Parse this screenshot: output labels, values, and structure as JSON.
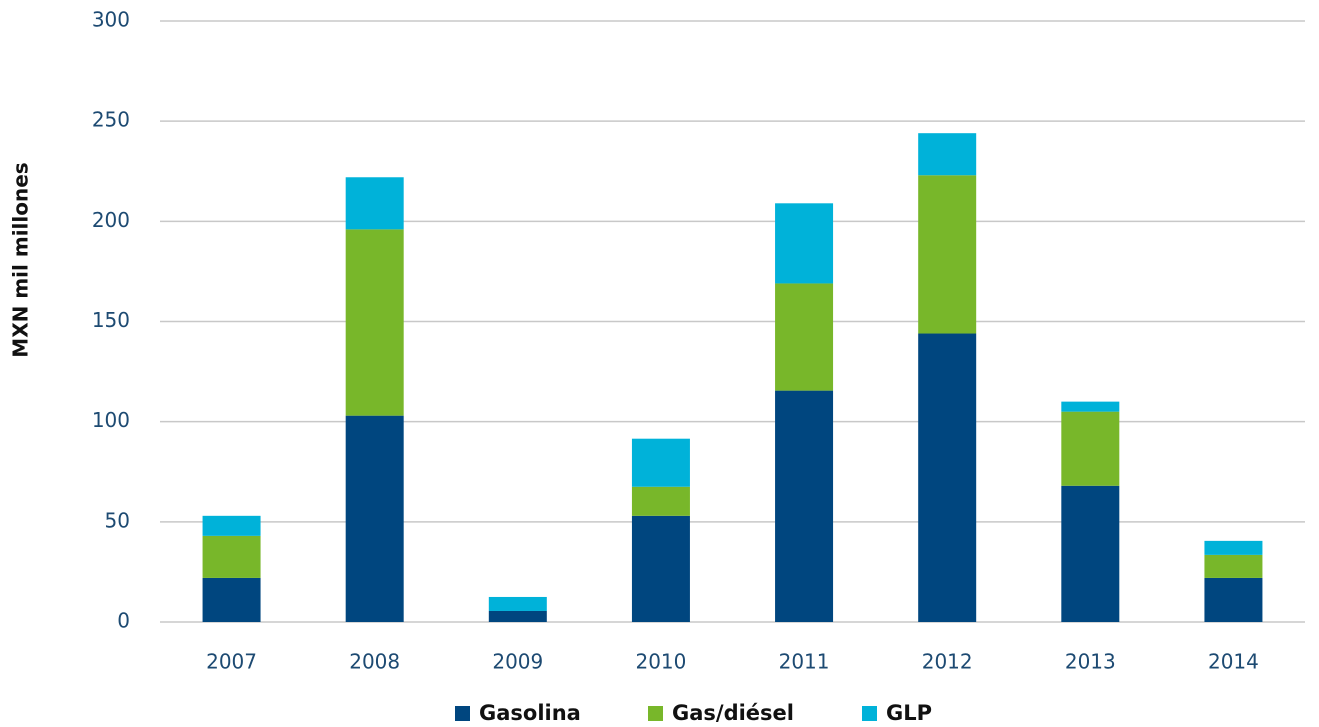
{
  "chart_data": {
    "type": "stacked_bar",
    "y_label": "MXN mil millones",
    "categories": [
      "2007",
      "2008",
      "2009",
      "2010",
      "2011",
      "2012",
      "2013",
      "2014"
    ],
    "series": [
      {
        "name": "Gasolina",
        "color": "#00467f",
        "values": [
          22,
          103,
          5.5,
          53,
          115.5,
          144,
          68,
          22
        ]
      },
      {
        "name": "Gas/diésel",
        "color": "#78b72a",
        "values": [
          21,
          93,
          0,
          14.5,
          53.5,
          79,
          37,
          11.5
        ]
      },
      {
        "name": "GLP",
        "color": "#00b2d9",
        "values": [
          10,
          26,
          7,
          24,
          40,
          21,
          5,
          7
        ]
      }
    ],
    "ylim": [
      0,
      300
    ],
    "yticks": [
      0,
      50,
      100,
      150,
      200,
      250,
      300
    ],
    "grid": true,
    "legend": "bottom"
  }
}
